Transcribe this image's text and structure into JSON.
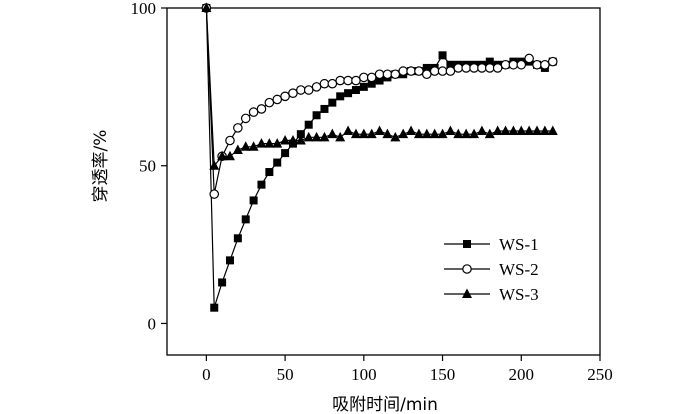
{
  "chart_data": {
    "type": "line",
    "xlabel": "吸附时间/min",
    "ylabel": "穿透率/%",
    "xlim": [
      -25,
      250
    ],
    "ylim": [
      -10,
      100
    ],
    "x_ticks": [
      0,
      50,
      100,
      150,
      200,
      250
    ],
    "y_ticks": [
      0,
      50,
      100
    ],
    "legend_position": "lower-right",
    "series": [
      {
        "name": "WS-1",
        "marker": "square-filled",
        "points": [
          [
            0,
            100
          ],
          [
            5,
            5
          ],
          [
            10,
            13
          ],
          [
            15,
            20
          ],
          [
            20,
            27
          ],
          [
            25,
            33
          ],
          [
            30,
            39
          ],
          [
            35,
            44
          ],
          [
            40,
            48
          ],
          [
            45,
            51
          ],
          [
            50,
            54
          ],
          [
            55,
            57
          ],
          [
            60,
            60
          ],
          [
            65,
            63
          ],
          [
            70,
            66
          ],
          [
            75,
            68
          ],
          [
            80,
            70
          ],
          [
            85,
            72
          ],
          [
            90,
            73
          ],
          [
            95,
            74
          ],
          [
            100,
            75
          ],
          [
            105,
            76
          ],
          [
            110,
            77
          ],
          [
            115,
            78
          ],
          [
            120,
            79
          ],
          [
            125,
            79
          ],
          [
            130,
            80
          ],
          [
            135,
            80
          ],
          [
            140,
            81
          ],
          [
            145,
            81
          ],
          [
            150,
            85
          ],
          [
            155,
            82
          ],
          [
            160,
            82
          ],
          [
            165,
            82
          ],
          [
            170,
            82
          ],
          [
            175,
            82
          ],
          [
            180,
            83
          ],
          [
            185,
            82
          ],
          [
            190,
            82
          ],
          [
            195,
            83
          ],
          [
            200,
            83
          ],
          [
            205,
            83
          ],
          [
            210,
            82
          ],
          [
            215,
            81
          ],
          [
            220,
            83
          ]
        ]
      },
      {
        "name": "WS-2",
        "marker": "circle-open",
        "points": [
          [
            0,
            100
          ],
          [
            5,
            41
          ],
          [
            10,
            53
          ],
          [
            15,
            58
          ],
          [
            20,
            62
          ],
          [
            25,
            65
          ],
          [
            30,
            67
          ],
          [
            35,
            68
          ],
          [
            40,
            70
          ],
          [
            45,
            71
          ],
          [
            50,
            72
          ],
          [
            55,
            73
          ],
          [
            60,
            74
          ],
          [
            65,
            74
          ],
          [
            70,
            75
          ],
          [
            75,
            76
          ],
          [
            80,
            76
          ],
          [
            85,
            77
          ],
          [
            90,
            77
          ],
          [
            95,
            77
          ],
          [
            100,
            78
          ],
          [
            105,
            78
          ],
          [
            110,
            79
          ],
          [
            115,
            79
          ],
          [
            120,
            79
          ],
          [
            125,
            80
          ],
          [
            130,
            80
          ],
          [
            135,
            80
          ],
          [
            140,
            79
          ],
          [
            145,
            80
          ],
          [
            150,
            80
          ],
          [
            155,
            80
          ],
          [
            160,
            81
          ],
          [
            165,
            81
          ],
          [
            170,
            81
          ],
          [
            175,
            81
          ],
          [
            180,
            81
          ],
          [
            185,
            81
          ],
          [
            190,
            82
          ],
          [
            195,
            82
          ],
          [
            200,
            82
          ],
          [
            205,
            84
          ],
          [
            210,
            82
          ],
          [
            215,
            82
          ],
          [
            220,
            83
          ]
        ]
      },
      {
        "name": "WS-3",
        "marker": "triangle-filled",
        "points": [
          [
            0,
            100
          ],
          [
            5,
            50
          ],
          [
            10,
            53
          ],
          [
            15,
            53
          ],
          [
            20,
            55
          ],
          [
            25,
            56
          ],
          [
            30,
            56
          ],
          [
            35,
            57
          ],
          [
            40,
            57
          ],
          [
            45,
            57
          ],
          [
            50,
            58
          ],
          [
            55,
            58
          ],
          [
            60,
            58
          ],
          [
            65,
            59
          ],
          [
            70,
            59
          ],
          [
            75,
            59
          ],
          [
            80,
            60
          ],
          [
            85,
            59
          ],
          [
            90,
            61
          ],
          [
            95,
            60
          ],
          [
            100,
            60
          ],
          [
            105,
            60
          ],
          [
            110,
            61
          ],
          [
            115,
            60
          ],
          [
            120,
            59
          ],
          [
            125,
            60
          ],
          [
            130,
            61
          ],
          [
            135,
            60
          ],
          [
            140,
            60
          ],
          [
            145,
            60
          ],
          [
            150,
            60
          ],
          [
            155,
            61
          ],
          [
            160,
            60
          ],
          [
            165,
            60
          ],
          [
            170,
            60
          ],
          [
            175,
            61
          ],
          [
            180,
            60
          ],
          [
            185,
            61
          ],
          [
            190,
            61
          ],
          [
            195,
            61
          ],
          [
            200,
            61
          ],
          [
            205,
            61
          ],
          [
            210,
            61
          ],
          [
            215,
            61
          ],
          [
            220,
            61
          ]
        ]
      }
    ]
  }
}
